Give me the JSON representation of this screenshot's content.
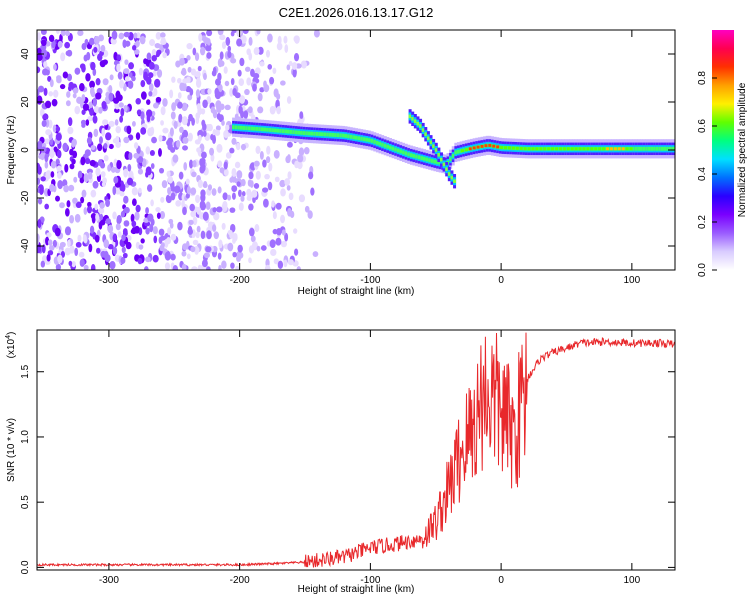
{
  "title": "C2E1.2026.016.13.17.G12",
  "colors": {
    "snr_line": "#e8282b",
    "axis": "#000000",
    "colorbar_stops": [
      "#ffffff",
      "#d9ccff",
      "#9a5cff",
      "#7a00ff",
      "#2a00ff",
      "#0070ff",
      "#00e0ff",
      "#00ff80",
      "#60ff00",
      "#fff000",
      "#ffa000",
      "#ff3000",
      "#ff0050",
      "#ff00c0"
    ]
  },
  "chart_data": [
    {
      "type": "heatmap",
      "xlabel": "Height of straight line (km)",
      "ylabel": "Frequency (Hz)",
      "xlim": [
        -355,
        133
      ],
      "ylim": [
        -50,
        50
      ],
      "xticks": [
        -300,
        -200,
        -100,
        0,
        100
      ],
      "yticks": [
        -40,
        -20,
        0,
        20,
        40
      ],
      "xtick_labels": [
        "-300",
        "-200",
        "-100",
        "0",
        "100"
      ],
      "ytick_labels": [
        "-40",
        "-20",
        "0",
        "20",
        "40"
      ],
      "colorbar": {
        "label": "Normalized spectral amplitude",
        "range": [
          0,
          1
        ],
        "ticks": [
          0.0,
          0.2,
          0.4,
          0.6,
          0.8
        ],
        "tick_labels": [
          "0.0",
          "0.2",
          "0.4",
          "0.6",
          "0.8"
        ]
      },
      "ridge": {
        "x": [
          -205,
          -180,
          -150,
          -120,
          -100,
          -85,
          -70,
          -60,
          -50,
          -42,
          -35,
          -28,
          -20,
          -10,
          0,
          20,
          60,
          100,
          133
        ],
        "y": [
          9.5,
          8.5,
          7,
          6,
          4,
          1,
          -2,
          -3.5,
          -5,
          -6,
          -1,
          0,
          1,
          2,
          1,
          0.5,
          0.5,
          0.5,
          0.5
        ]
      },
      "branch": {
        "x": [
          -70,
          -62,
          -55,
          -50,
          -45,
          -40,
          -36
        ],
        "y": [
          14,
          10,
          4,
          0,
          -5,
          -10,
          -13
        ]
      },
      "noise_region": {
        "x": [
          -355,
          -140
        ],
        "note_visible": false
      }
    },
    {
      "type": "line",
      "xlabel": "Height of straight line (km)",
      "ylabel": "SNR (10 * v/v)",
      "y_multiplier_label": "(x10",
      "y_multiplier_exp": "4",
      "xlim": [
        -355,
        133
      ],
      "ylim": [
        -0.02,
        1.82
      ],
      "xticks": [
        -300,
        -200,
        -100,
        0,
        100
      ],
      "yticks": [
        0.0,
        0.5,
        1.0,
        1.5
      ],
      "xtick_labels": [
        "-300",
        "-200",
        "-100",
        "0",
        "100"
      ],
      "ytick_labels": [
        "0.0",
        "0.5",
        "1.0",
        "1.5"
      ],
      "series": [
        {
          "x": [
            -355,
            -300,
            -250,
            -200,
            -170,
            -150,
            -120,
            -100,
            -80,
            -60,
            -50,
            -40,
            -30,
            -20,
            -15,
            -10,
            0,
            10,
            20,
            30,
            40,
            50,
            60,
            80,
            100,
            120,
            133
          ],
          "y": [
            0.02,
            0.02,
            0.02,
            0.02,
            0.03,
            0.04,
            0.08,
            0.15,
            0.18,
            0.22,
            0.35,
            0.6,
            0.9,
            1.1,
            1.3,
            1.35,
            1.2,
            1.0,
            1.45,
            1.6,
            1.65,
            1.68,
            1.72,
            1.73,
            1.72,
            1.72,
            1.71
          ]
        }
      ]
    }
  ]
}
